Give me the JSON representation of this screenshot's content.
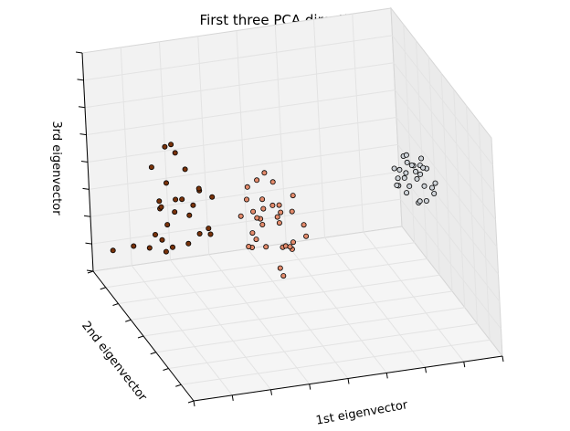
{
  "chart_data": {
    "type": "scatter",
    "projection": "3d",
    "title": "First three PCA directions",
    "xlabel": "1st eigenvector",
    "ylabel": "2nd eigenvector",
    "zlabel": "3rd eigenvector",
    "tick_labels_shown": false,
    "grid": true,
    "colormap": "light-blue to orange to dark-brown",
    "series": [
      {
        "points": [
          [
            3.2,
            0.6,
            0.1
          ],
          [
            3.4,
            0.4,
            0.3
          ],
          [
            3.1,
            0.7,
            -0.1
          ],
          [
            3.5,
            0.2,
            0.2
          ],
          [
            3.3,
            0.5,
            0.4
          ],
          [
            3.6,
            0.3,
            0.0
          ],
          [
            3.2,
            0.8,
            -0.2
          ],
          [
            3.4,
            0.6,
            0.3
          ],
          [
            3.0,
            0.5,
            0.2
          ],
          [
            3.5,
            0.7,
            0.1
          ],
          [
            3.3,
            0.3,
            -0.1
          ],
          [
            3.6,
            0.5,
            0.3
          ],
          [
            3.1,
            0.4,
            0.0
          ],
          [
            3.4,
            0.8,
            0.2
          ],
          [
            3.2,
            0.2,
            0.4
          ],
          [
            3.5,
            0.4,
            -0.2
          ],
          [
            3.3,
            0.7,
            0.1
          ],
          [
            3.0,
            0.6,
            0.3
          ],
          [
            3.6,
            0.6,
            -0.1
          ],
          [
            3.4,
            0.3,
            0.5
          ],
          [
            3.2,
            0.5,
            0.6
          ],
          [
            3.5,
            0.5,
            0.5
          ],
          [
            3.3,
            0.9,
            0.0
          ],
          [
            3.1,
            0.3,
            0.2
          ],
          [
            3.7,
            0.4,
            0.1
          ],
          [
            3.4,
            0.5,
            -0.3
          ],
          [
            3.2,
            0.6,
            0.5
          ],
          [
            3.6,
            0.7,
            0.2
          ]
        ],
        "color_value": 0.1
      },
      {
        "points": [
          [
            -0.2,
            0.1,
            0.2
          ],
          [
            0.1,
            -0.2,
            0.5
          ],
          [
            -0.4,
            0.3,
            0.1
          ],
          [
            0.3,
            0.0,
            -0.3
          ],
          [
            -0.1,
            -0.4,
            0.6
          ],
          [
            0.2,
            0.2,
            0.3
          ],
          [
            -0.3,
            0.0,
            -0.1
          ],
          [
            0.4,
            -0.1,
            0.4
          ],
          [
            0.0,
            0.3,
            0.0
          ],
          [
            -0.5,
            -0.2,
            0.2
          ],
          [
            0.1,
            0.4,
            -0.2
          ],
          [
            0.5,
            -0.3,
            0.3
          ],
          [
            -0.2,
            -0.1,
            0.7
          ],
          [
            0.3,
            0.1,
            -0.4
          ],
          [
            -0.1,
            0.2,
            0.8
          ],
          [
            0.2,
            -0.4,
            0.1
          ],
          [
            -0.4,
            0.1,
            -0.3
          ],
          [
            0.0,
            -0.3,
            0.4
          ],
          [
            0.4,
            0.3,
            0.2
          ],
          [
            -0.3,
            -0.3,
            0.0
          ],
          [
            0.1,
            0.0,
            0.9
          ],
          [
            -0.2,
            0.4,
            0.3
          ],
          [
            0.3,
            -0.2,
            -0.2
          ],
          [
            0.0,
            0.1,
            1.0
          ],
          [
            -0.1,
            -0.5,
            -0.4
          ],
          [
            0.2,
            0.5,
            0.0
          ],
          [
            0.5,
            0.0,
            0.6
          ],
          [
            -0.4,
            -0.1,
            0.5
          ],
          [
            0.1,
            -0.1,
            -0.6
          ],
          [
            -0.3,
            0.2,
            0.7
          ],
          [
            0.6,
            -0.2,
            0.0
          ],
          [
            0.0,
            -0.6,
            0.2
          ],
          [
            -0.2,
            0.3,
            -0.5
          ]
        ],
        "color_value": 0.6
      },
      {
        "points": [
          [
            -1.6,
            0.5,
            0.4
          ],
          [
            -1.3,
            0.2,
            0.8
          ],
          [
            -1.8,
            0.7,
            0.1
          ],
          [
            -1.2,
            0.4,
            -0.2
          ],
          [
            -1.5,
            0.1,
            0.6
          ],
          [
            -1.9,
            0.3,
            0.9
          ],
          [
            -1.4,
            0.6,
            0.3
          ],
          [
            -1.7,
            0.0,
            0.0
          ],
          [
            -1.1,
            0.5,
            0.5
          ],
          [
            -1.6,
            0.8,
            -0.3
          ],
          [
            -1.3,
            -0.1,
            0.2
          ],
          [
            -2.0,
            0.4,
            0.5
          ],
          [
            -1.5,
            0.3,
            1.1
          ],
          [
            -1.8,
            0.9,
            0.7
          ],
          [
            -1.2,
            0.7,
            -0.1
          ],
          [
            -1.4,
            -0.2,
            0.4
          ],
          [
            -1.7,
            0.6,
            1.3
          ],
          [
            -1.9,
            0.2,
            -0.2
          ],
          [
            -1.3,
            0.9,
            0.9
          ],
          [
            -1.6,
            1.4,
            -1.2
          ],
          [
            -1.4,
            1.3,
            -1.0
          ],
          [
            -1.8,
            1.6,
            -1.3
          ],
          [
            -1.2,
            1.5,
            -1.4
          ],
          [
            -2.1,
            1.8,
            -1.5
          ],
          [
            -1.6,
            1.2,
            -0.8
          ],
          [
            -1.7,
            0.4,
            1.5
          ],
          [
            -1.5,
            0.7,
            0.0
          ],
          [
            -1.9,
            0.5,
            0.3
          ],
          [
            -1.1,
            0.1,
            0.7
          ]
        ],
        "color_value": 1.0
      }
    ]
  }
}
